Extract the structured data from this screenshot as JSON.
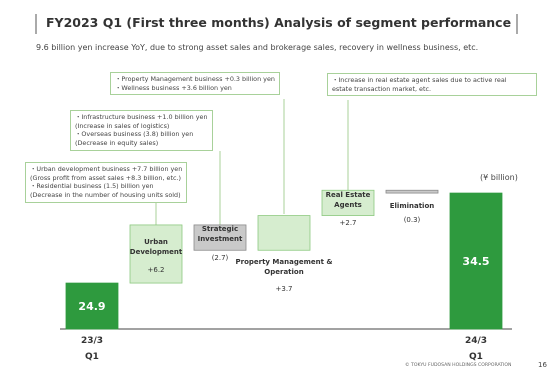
{
  "chart_data": {
    "type": "waterfall",
    "title": "FY2023 Q1 (First three months) Analysis of segment performance",
    "subtitle": "9.6 billion yen increase YoY, due to strong asset sales and brokerage sales, recovery in wellness business, etc.",
    "unit": "(¥ billion)",
    "categories": [
      "23/3",
      "Urban Development",
      "Strategic Investment",
      "Property Management & Operation",
      "Real Estate Agents",
      "Elimination",
      "24/3"
    ],
    "start_period": "Q1",
    "end_period": "Q1",
    "values": [
      24.9,
      6.2,
      -2.7,
      3.7,
      2.7,
      -0.3,
      34.5
    ],
    "value_labels": [
      "24.9",
      "+6.2",
      "(2.7)",
      "+3.7",
      "+2.7",
      "(0.3)",
      "34.5"
    ],
    "colors": {
      "total": "#2e9a3e",
      "increase": "#d6edcf",
      "decrease": "#c9c9c9"
    },
    "ylim": [
      20,
      36
    ],
    "annotations": [
      {
        "lines": [
          "・Urban development business +7.7 billion yen",
          "(Gross profit from asset sales +8.3 billion, etc.)",
          "・Residential business (1.5) billion yen",
          "(Decrease in the number of housing units sold)"
        ]
      },
      {
        "lines": [
          "・Infrastructure business +1.0 billion yen",
          "(Increase in sales of logistics)",
          "・Overseas business (3.8) billion yen",
          "(Decrease in equity sales)"
        ]
      },
      {
        "lines": [
          "・Property Management business +0.3 billion yen",
          "・Wellness business +3.6 billion yen"
        ]
      },
      {
        "lines": [
          "・Increase in real estate agent sales due to active real",
          "estate transaction market, etc."
        ]
      }
    ],
    "footer": "© TOKYU FUDOSAN HOLDINGS CORPORATION",
    "page_number": "16"
  }
}
